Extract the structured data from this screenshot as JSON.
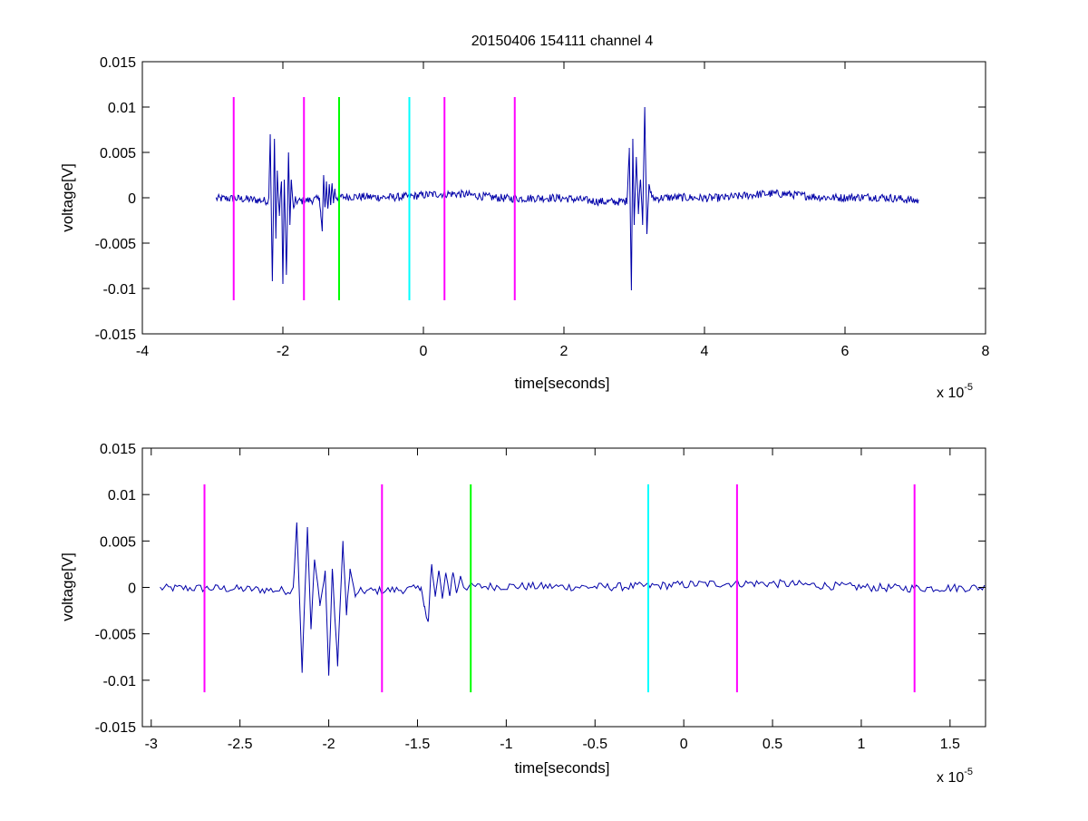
{
  "figure": {
    "title": "20150406 154111 channel 4"
  },
  "chart_data": [
    {
      "type": "line",
      "title": "20150406 154111 channel 4",
      "xlabel": "time[seconds]",
      "ylabel": "voltage[V]",
      "x_exponent_label": "x 10",
      "x_exponent": "-5",
      "xlim": [
        -4,
        8
      ],
      "ylim": [
        -0.015,
        0.015
      ],
      "xticks": [
        -4,
        -2,
        0,
        2,
        4,
        6,
        8
      ],
      "xtick_labels": [
        "-4",
        "-2",
        "0",
        "2",
        "4",
        "6",
        "8"
      ],
      "yticks": [
        -0.015,
        -0.01,
        -0.005,
        0,
        0.005,
        0.01,
        0.015
      ],
      "ytick_labels": [
        "-0.015",
        "-0.01",
        "-0.005",
        "0",
        "0.005",
        "0.01",
        "0.015"
      ],
      "grid": false,
      "signal": {
        "color": "#0000a8",
        "x_range": [
          -2.95,
          7.05
        ],
        "bursts": [
          {
            "x": [
              -2.2,
              -2.18,
              -2.15,
              -2.12,
              -2.1,
              -2.08,
              -2.05,
              -2.02,
              -2.0,
              -1.98,
              -1.95,
              -1.92,
              -1.9,
              -1.88,
              -1.85,
              -1.82
            ],
            "y": [
              0.0,
              0.007,
              -0.0092,
              0.0065,
              -0.0045,
              0.003,
              -0.002,
              0.0018,
              -0.0095,
              0.002,
              -0.0085,
              0.005,
              -0.003,
              0.002,
              -0.001,
              0.0
            ]
          },
          {
            "x": [
              -1.48,
              -1.46,
              -1.44,
              -1.42,
              -1.4,
              -1.38,
              -1.36,
              -1.34,
              -1.32,
              -1.3,
              -1.28,
              -1.26,
              -1.24
            ],
            "y": [
              0.0,
              -0.002,
              -0.0037,
              0.0025,
              -0.001,
              0.0018,
              -0.0012,
              0.0015,
              -0.0008,
              0.0016,
              -0.0006,
              0.001,
              0.0
            ]
          },
          {
            "x": [
              2.9,
              2.93,
              2.96,
              2.98,
              3.0,
              3.03,
              3.06,
              3.09,
              3.12,
              3.15,
              3.18,
              3.21,
              3.25
            ],
            "y": [
              0.0,
              0.0055,
              -0.0102,
              0.0065,
              -0.003,
              0.0045,
              -0.0018,
              0.002,
              -0.003,
              0.01,
              -0.004,
              0.0015,
              0.0
            ]
          }
        ]
      },
      "vlines": [
        {
          "x": -2.7,
          "color": "#ff00ff",
          "ymin": -0.0113,
          "ymax": 0.0111
        },
        {
          "x": -1.7,
          "color": "#ff00ff",
          "ymin": -0.0113,
          "ymax": 0.0111
        },
        {
          "x": -1.2,
          "color": "#00ff00",
          "ymin": -0.0113,
          "ymax": 0.0111
        },
        {
          "x": -0.2,
          "color": "#00ffff",
          "ymin": -0.0113,
          "ymax": 0.0111
        },
        {
          "x": 0.3,
          "color": "#ff00ff",
          "ymin": -0.0113,
          "ymax": 0.0111
        },
        {
          "x": 1.3,
          "color": "#ff00ff",
          "ymin": -0.0113,
          "ymax": 0.0111
        }
      ]
    },
    {
      "type": "line",
      "title": "",
      "xlabel": "time[seconds]",
      "ylabel": "voltage[V]",
      "x_exponent_label": "x 10",
      "x_exponent": "-5",
      "xlim": [
        -3.05,
        1.7
      ],
      "ylim": [
        -0.015,
        0.015
      ],
      "xticks": [
        -3,
        -2.5,
        -2,
        -1.5,
        -1,
        -0.5,
        0,
        0.5,
        1,
        1.5
      ],
      "xtick_labels": [
        "-3",
        "-2.5",
        "-2",
        "-1.5",
        "-1",
        "-0.5",
        "0",
        "0.5",
        "1",
        "1.5"
      ],
      "yticks": [
        -0.015,
        -0.01,
        -0.005,
        0,
        0.005,
        0.01,
        0.015
      ],
      "ytick_labels": [
        "-0.015",
        "-0.01",
        "-0.005",
        "0",
        "0.005",
        "0.01",
        "0.015"
      ],
      "grid": false,
      "signal": {
        "color": "#0000a8",
        "x_range": [
          -2.95,
          1.7
        ],
        "bursts": [
          {
            "x": [
              -2.2,
              -2.18,
              -2.15,
              -2.12,
              -2.1,
              -2.08,
              -2.05,
              -2.02,
              -2.0,
              -1.98,
              -1.95,
              -1.92,
              -1.9,
              -1.88,
              -1.85,
              -1.82
            ],
            "y": [
              0.0,
              0.007,
              -0.0092,
              0.0065,
              -0.0045,
              0.003,
              -0.002,
              0.0018,
              -0.0095,
              0.002,
              -0.0085,
              0.005,
              -0.003,
              0.002,
              -0.001,
              0.0
            ]
          },
          {
            "x": [
              -1.48,
              -1.46,
              -1.44,
              -1.42,
              -1.4,
              -1.38,
              -1.36,
              -1.34,
              -1.32,
              -1.3,
              -1.28,
              -1.26,
              -1.24
            ],
            "y": [
              0.0,
              -0.002,
              -0.0037,
              0.0025,
              -0.001,
              0.0018,
              -0.0012,
              0.0015,
              -0.0008,
              0.0016,
              -0.0006,
              0.001,
              0.0
            ]
          }
        ]
      },
      "vlines": [
        {
          "x": -2.7,
          "color": "#ff00ff",
          "ymin": -0.0113,
          "ymax": 0.0111
        },
        {
          "x": -1.7,
          "color": "#ff00ff",
          "ymin": -0.0113,
          "ymax": 0.0111
        },
        {
          "x": -1.2,
          "color": "#00ff00",
          "ymin": -0.0113,
          "ymax": 0.0111
        },
        {
          "x": -0.2,
          "color": "#00ffff",
          "ymin": -0.0113,
          "ymax": 0.0111
        },
        {
          "x": 0.3,
          "color": "#ff00ff",
          "ymin": -0.0113,
          "ymax": 0.0111
        },
        {
          "x": 1.3,
          "color": "#ff00ff",
          "ymin": -0.0113,
          "ymax": 0.0111
        }
      ]
    }
  ]
}
